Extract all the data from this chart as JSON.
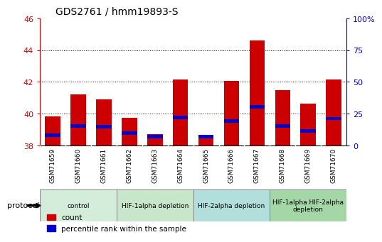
{
  "title": "GDS2761 / hmm19893-S",
  "samples": [
    "GSM71659",
    "GSM71660",
    "GSM71661",
    "GSM71662",
    "GSM71663",
    "GSM71664",
    "GSM71665",
    "GSM71666",
    "GSM71667",
    "GSM71668",
    "GSM71669",
    "GSM71670"
  ],
  "count_values": [
    39.85,
    41.2,
    40.9,
    39.75,
    38.7,
    42.15,
    38.6,
    42.05,
    44.6,
    41.5,
    40.65,
    42.15
  ],
  "percentile_values": [
    38.65,
    39.25,
    39.2,
    38.8,
    38.55,
    39.75,
    38.55,
    39.55,
    40.45,
    39.25,
    38.9,
    39.7
  ],
  "bar_bottom": 38.0,
  "count_color": "#cc0000",
  "percentile_color": "#0000cc",
  "bar_width": 0.6,
  "ylim_left": [
    38.0,
    46.0
  ],
  "ylim_right": [
    0,
    100
  ],
  "yticks_left": [
    38,
    40,
    42,
    44,
    46
  ],
  "yticks_right": [
    0,
    25,
    50,
    75,
    100
  ],
  "ytick_right_labels": [
    "0",
    "25",
    "50",
    "75",
    "100%"
  ],
  "grid_ticks": [
    40,
    42,
    44
  ],
  "groups": [
    {
      "label": "control",
      "start": 0,
      "end": 2,
      "color": "#d4edda"
    },
    {
      "label": "HIF-1alpha depletion",
      "start": 3,
      "end": 5,
      "color": "#c8e6c9"
    },
    {
      "label": "HIF-2alpha depletion",
      "start": 6,
      "end": 8,
      "color": "#b2dfdb"
    },
    {
      "label": "HIF-1alpha HIF-2alpha\ndepletion",
      "start": 9,
      "end": 11,
      "color": "#a5d6a7"
    }
  ],
  "protocol_label": "protocol",
  "legend_count": "count",
  "legend_percentile": "percentile rank within the sample",
  "axis_label_color_left": "#cc0000",
  "axis_label_color_right": "#0000cc",
  "xtick_bg_color": "#d0d0d0",
  "blue_bar_height": 0.22
}
